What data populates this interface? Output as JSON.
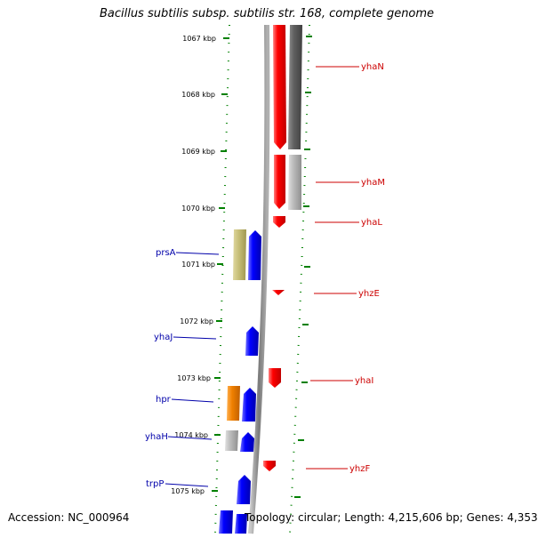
{
  "title": "Bacillus subtilis subsp. subtilis str. 168, complete genome",
  "footer": {
    "accession": "Accession: NC_000964",
    "summary": "Topology: circular; Length: 4,215,606 bp; Genes: 4,353"
  },
  "scale": {
    "unit": "kbp",
    "ticks": [
      "1067 kbp",
      "1068 kbp",
      "1069 kbp",
      "1070 kbp",
      "1071 kbp",
      "1072 kbp",
      "1073 kbp",
      "1074 kbp",
      "1075 kbp"
    ]
  },
  "colors": {
    "forward_gene": "#0000ff",
    "reverse_gene": "#ff0000",
    "forward_label": "#0000aa",
    "reverse_label": "#cc0000",
    "tick": "#008000",
    "backbone": "#888888",
    "cog_dark_gray": "#606060",
    "cog_light_gray": "#bbbbbb",
    "cog_khaki": "#c8c07a",
    "cog_orange": "#f08000"
  },
  "forward_labels": [
    "prsA",
    "yhaJ",
    "hpr",
    "yhaH",
    "trpP"
  ],
  "reverse_labels": [
    "yhaN",
    "yhaM",
    "yhaL",
    "yhzE",
    "yhaI",
    "yhzF"
  ]
}
